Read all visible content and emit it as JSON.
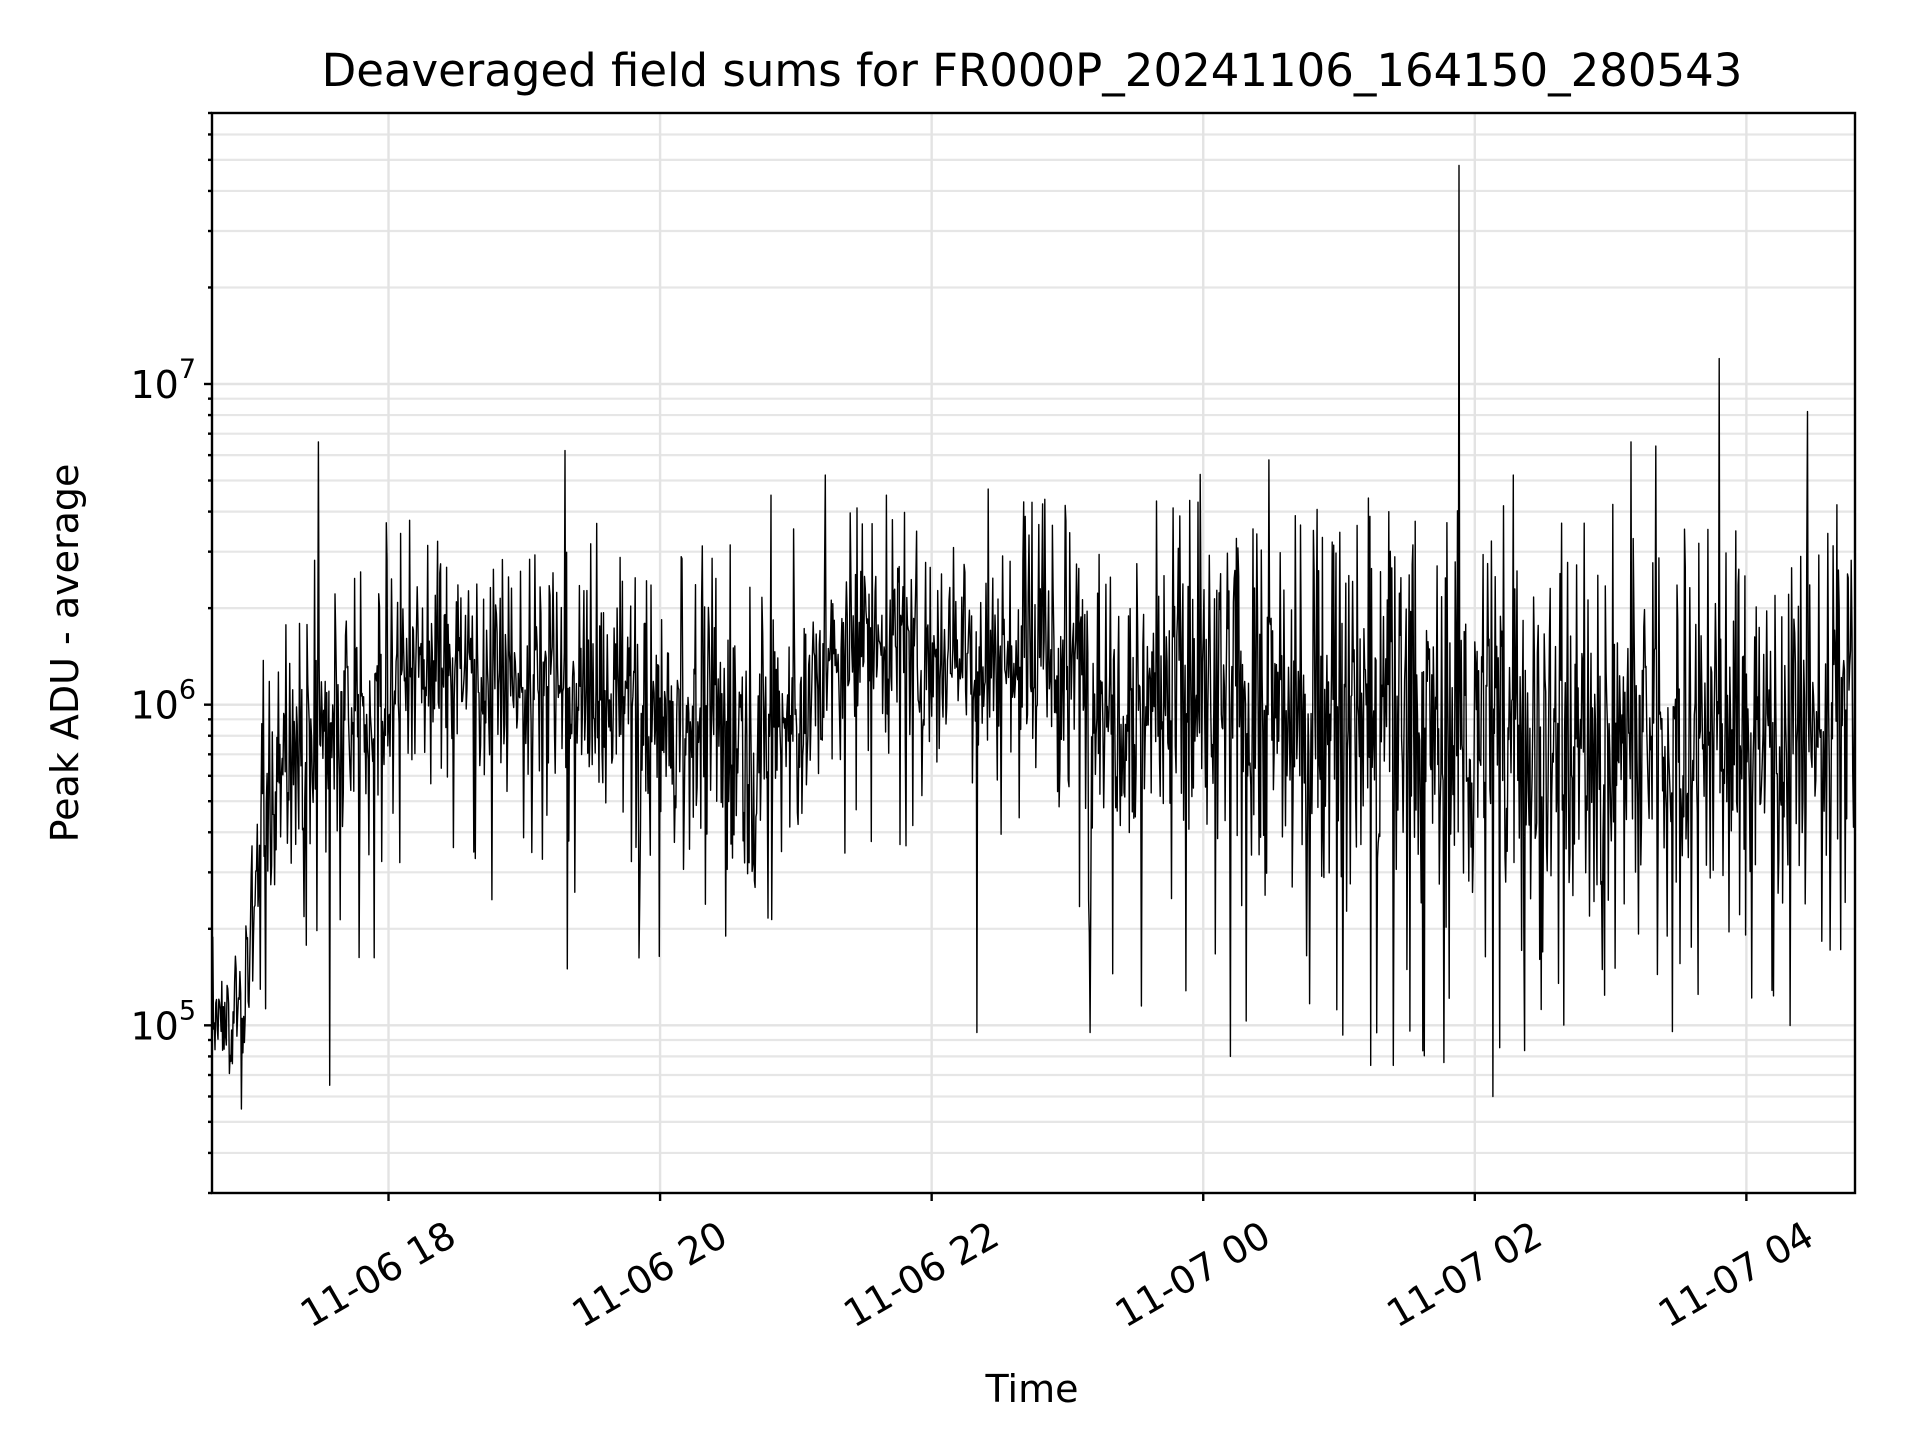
{
  "chart_data": {
    "type": "line",
    "title": "Deaveraged field sums for FR000P_20241106_164150_280543",
    "xlabel": "Time",
    "ylabel": "Peak ADU - average",
    "xlim": [
      "2024-11-06 16:42",
      "2024-11-07 04:48"
    ],
    "ylim": [
      30000,
      70000000
    ],
    "yscale": "log",
    "grid": "major and minor",
    "legend": "none",
    "x_ticks": [
      "11-06 18",
      "11-06 20",
      "11-06 22",
      "11-07 00",
      "11-07 02",
      "11-07 04"
    ],
    "y_ticks": [
      {
        "base": "10",
        "exp": "5",
        "value": 100000
      },
      {
        "base": "10",
        "exp": "6",
        "value": 1000000
      },
      {
        "base": "10",
        "exp": "7",
        "value": 10000000
      }
    ],
    "line_color": "#000000",
    "series": [
      {
        "samples_per_hour": 180,
        "start": "2024-11-06 16:42",
        "end": "2024-11-07 04:48",
        "envelope": [
          {
            "time": "2024-11-06 16:42",
            "median": 100000,
            "low": 70000,
            "high": 150000
          },
          {
            "time": "2024-11-06 16:55",
            "median": 110000,
            "low": 80000,
            "high": 230000
          },
          {
            "time": "2024-11-06 17:05",
            "median": 450000,
            "low": 200000,
            "high": 900000
          },
          {
            "time": "2024-11-06 17:20",
            "median": 800000,
            "low": 300000,
            "high": 1500000
          },
          {
            "time": "2024-11-06 17:45",
            "median": 850000,
            "low": 200000,
            "high": 1500000
          },
          {
            "time": "2024-11-06 18:00",
            "median": 1200000,
            "low": 500000,
            "high": 2500000
          },
          {
            "time": "2024-11-06 18:30",
            "median": 1400000,
            "low": 600000,
            "high": 2500000
          },
          {
            "time": "2024-11-06 19:30",
            "median": 1000000,
            "low": 400000,
            "high": 2200000
          },
          {
            "time": "2024-11-06 20:30",
            "median": 800000,
            "low": 300000,
            "high": 2000000
          },
          {
            "time": "2024-11-06 21:00",
            "median": 900000,
            "low": 300000,
            "high": 2000000
          },
          {
            "time": "2024-11-06 21:30",
            "median": 1600000,
            "low": 700000,
            "high": 2600000
          },
          {
            "time": "2024-11-06 22:30",
            "median": 1400000,
            "low": 500000,
            "high": 2500000
          },
          {
            "time": "2024-11-06 23:30",
            "median": 1100000,
            "low": 250000,
            "high": 2500000
          },
          {
            "time": "2024-11-07 01:00",
            "median": 900000,
            "low": 200000,
            "high": 2500000
          },
          {
            "time": "2024-11-07 02:00",
            "median": 800000,
            "low": 150000,
            "high": 2500000
          },
          {
            "time": "2024-11-07 03:00",
            "median": 750000,
            "low": 200000,
            "high": 2200000
          },
          {
            "time": "2024-11-07 04:00",
            "median": 800000,
            "low": 200000,
            "high": 2400000
          },
          {
            "time": "2024-11-07 04:48",
            "median": 950000,
            "low": 250000,
            "high": 2500000
          }
        ],
        "spikes": [
          {
            "time": "2024-11-06 17:29",
            "value": 6600000
          },
          {
            "time": "2024-11-06 17:34",
            "value": 65000
          },
          {
            "time": "2024-11-06 19:18",
            "value": 6200000
          },
          {
            "time": "2024-11-06 19:19",
            "value": 150000
          },
          {
            "time": "2024-11-06 21:13",
            "value": 5200000
          },
          {
            "time": "2024-11-06 22:25",
            "value": 4700000
          },
          {
            "time": "2024-11-06 21:40",
            "value": 4500000
          },
          {
            "time": "2024-11-06 20:49",
            "value": 4500000
          },
          {
            "time": "2024-11-07 00:29",
            "value": 5800000
          },
          {
            "time": "2024-11-07 00:12",
            "value": 80000
          },
          {
            "time": "2024-11-07 01:53",
            "value": 48000000
          },
          {
            "time": "2024-11-07 02:08",
            "value": 60000
          },
          {
            "time": "2024-11-07 02:17",
            "value": 5200000
          },
          {
            "time": "2024-11-07 01:14",
            "value": 75000
          },
          {
            "time": "2024-11-07 01:24",
            "value": 75000
          },
          {
            "time": "2024-11-07 03:09",
            "value": 6600000
          },
          {
            "time": "2024-11-07 03:20",
            "value": 6400000
          },
          {
            "time": "2024-11-07 03:48",
            "value": 12000000
          },
          {
            "time": "2024-11-07 04:27",
            "value": 8200000
          },
          {
            "time": "2024-11-07 04:40",
            "value": 4200000
          },
          {
            "time": "2024-11-06 23:10",
            "value": 95000
          },
          {
            "time": "2024-11-06 22:20",
            "value": 95000
          }
        ]
      }
    ]
  }
}
